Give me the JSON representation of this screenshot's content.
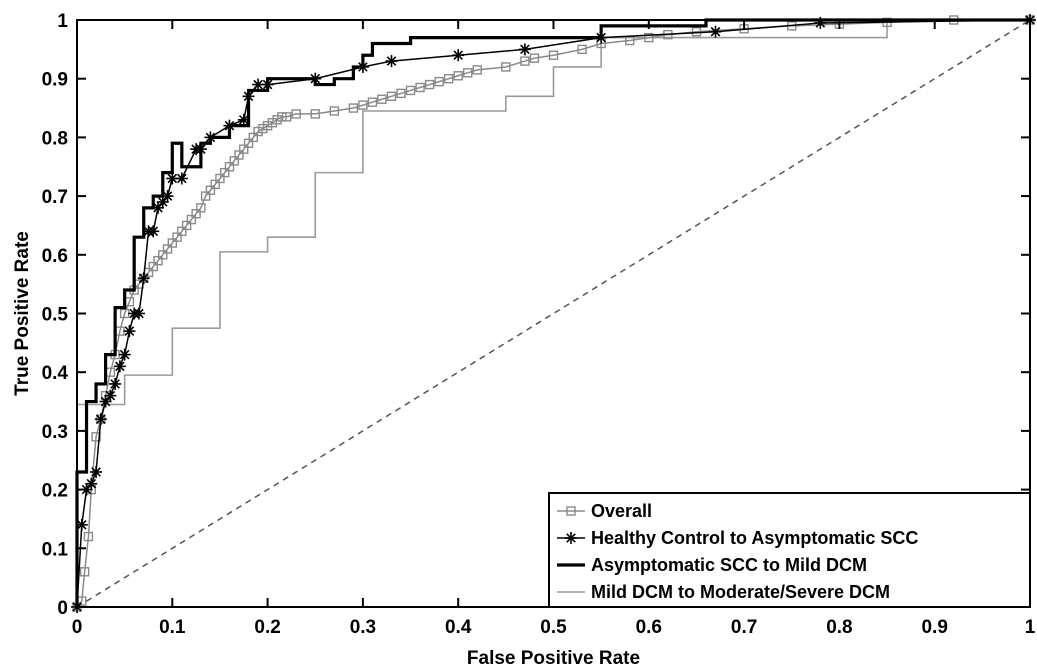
{
  "chart_data": {
    "type": "line",
    "title": "",
    "xlabel": "False Positive Rate",
    "ylabel": "True Positive Rate",
    "xlim": [
      0,
      1
    ],
    "ylim": [
      0,
      1
    ],
    "xticks": [
      0,
      0.1,
      0.2,
      0.3,
      0.4,
      0.5,
      0.6,
      0.7,
      0.8,
      0.9,
      1
    ],
    "yticks": [
      0,
      0.1,
      0.2,
      0.3,
      0.4,
      0.5,
      0.6,
      0.7,
      0.8,
      0.9,
      1
    ],
    "xtick_labels": [
      "0",
      "0.1",
      "0.2",
      "0.3",
      "0.4",
      "0.5",
      "0.6",
      "0.7",
      "0.8",
      "0.9",
      "1"
    ],
    "ytick_labels": [
      "0",
      "0.1",
      "0.2",
      "0.3",
      "0.4",
      "0.5",
      "0.6",
      "0.7",
      "0.8",
      "0.9",
      "1"
    ],
    "grid": false,
    "legend_position": "bottom-right",
    "reference_line": {
      "x": [
        0,
        1
      ],
      "y": [
        0,
        1
      ],
      "style": "dashed",
      "color": "#555555"
    },
    "series": [
      {
        "name": "Overall",
        "color": "#8a8a8a",
        "marker": "square",
        "x": [
          0.0,
          0.005,
          0.008,
          0.012,
          0.015,
          0.02,
          0.025,
          0.03,
          0.035,
          0.04,
          0.045,
          0.05,
          0.055,
          0.06,
          0.065,
          0.07,
          0.075,
          0.08,
          0.085,
          0.09,
          0.095,
          0.1,
          0.105,
          0.11,
          0.115,
          0.12,
          0.125,
          0.13,
          0.135,
          0.14,
          0.145,
          0.15,
          0.155,
          0.16,
          0.165,
          0.17,
          0.175,
          0.18,
          0.185,
          0.19,
          0.195,
          0.2,
          0.205,
          0.21,
          0.215,
          0.22,
          0.23,
          0.25,
          0.27,
          0.29,
          0.3,
          0.31,
          0.32,
          0.33,
          0.34,
          0.35,
          0.36,
          0.37,
          0.38,
          0.39,
          0.4,
          0.41,
          0.42,
          0.45,
          0.47,
          0.48,
          0.5,
          0.53,
          0.55,
          0.58,
          0.6,
          0.62,
          0.65,
          0.7,
          0.75,
          0.8,
          0.85,
          0.92,
          1.0
        ],
        "y": [
          0.0,
          0.01,
          0.06,
          0.12,
          0.2,
          0.29,
          0.32,
          0.36,
          0.4,
          0.43,
          0.47,
          0.5,
          0.52,
          0.54,
          0.55,
          0.56,
          0.57,
          0.58,
          0.59,
          0.6,
          0.61,
          0.62,
          0.63,
          0.64,
          0.65,
          0.66,
          0.67,
          0.68,
          0.7,
          0.71,
          0.72,
          0.73,
          0.74,
          0.75,
          0.76,
          0.77,
          0.78,
          0.79,
          0.8,
          0.81,
          0.815,
          0.82,
          0.825,
          0.83,
          0.835,
          0.835,
          0.84,
          0.84,
          0.845,
          0.85,
          0.855,
          0.86,
          0.865,
          0.87,
          0.875,
          0.88,
          0.885,
          0.89,
          0.895,
          0.9,
          0.905,
          0.91,
          0.915,
          0.92,
          0.93,
          0.935,
          0.94,
          0.95,
          0.96,
          0.965,
          0.97,
          0.975,
          0.98,
          0.985,
          0.99,
          0.993,
          0.996,
          1.0,
          1.0
        ]
      },
      {
        "name": "Healthy Control to Asymptomatic SCC",
        "color": "#000000",
        "marker": "asterisk",
        "x": [
          0.0,
          0.005,
          0.01,
          0.015,
          0.02,
          0.025,
          0.03,
          0.035,
          0.04,
          0.045,
          0.05,
          0.055,
          0.06,
          0.065,
          0.07,
          0.075,
          0.08,
          0.085,
          0.09,
          0.095,
          0.1,
          0.11,
          0.125,
          0.13,
          0.14,
          0.16,
          0.175,
          0.18,
          0.19,
          0.2,
          0.25,
          0.3,
          0.33,
          0.4,
          0.47,
          0.55,
          0.67,
          0.78,
          1.0
        ],
        "y": [
          0.0,
          0.14,
          0.2,
          0.21,
          0.23,
          0.32,
          0.35,
          0.36,
          0.38,
          0.41,
          0.43,
          0.47,
          0.5,
          0.5,
          0.56,
          0.64,
          0.64,
          0.68,
          0.69,
          0.7,
          0.73,
          0.73,
          0.78,
          0.78,
          0.8,
          0.82,
          0.83,
          0.87,
          0.89,
          0.89,
          0.9,
          0.92,
          0.93,
          0.94,
          0.95,
          0.97,
          0.98,
          0.995,
          1.0
        ]
      },
      {
        "name": "Asymptomatic SCC to Mild DCM",
        "color": "#000000",
        "marker": "none",
        "x": [
          0.0,
          0.0,
          0.01,
          0.01,
          0.02,
          0.02,
          0.03,
          0.03,
          0.04,
          0.04,
          0.05,
          0.05,
          0.06,
          0.06,
          0.07,
          0.07,
          0.08,
          0.08,
          0.09,
          0.09,
          0.1,
          0.1,
          0.11,
          0.11,
          0.13,
          0.13,
          0.14,
          0.14,
          0.16,
          0.16,
          0.18,
          0.18,
          0.2,
          0.2,
          0.25,
          0.25,
          0.27,
          0.27,
          0.29,
          0.29,
          0.3,
          0.3,
          0.31,
          0.31,
          0.35,
          0.35,
          0.55,
          0.55,
          0.66,
          0.66,
          1.0
        ],
        "y": [
          0.0,
          0.23,
          0.23,
          0.35,
          0.35,
          0.38,
          0.38,
          0.43,
          0.43,
          0.51,
          0.51,
          0.54,
          0.54,
          0.63,
          0.63,
          0.68,
          0.68,
          0.7,
          0.7,
          0.74,
          0.74,
          0.79,
          0.79,
          0.75,
          0.75,
          0.79,
          0.79,
          0.8,
          0.8,
          0.82,
          0.82,
          0.88,
          0.88,
          0.9,
          0.9,
          0.89,
          0.89,
          0.9,
          0.9,
          0.92,
          0.92,
          0.94,
          0.94,
          0.96,
          0.96,
          0.97,
          0.97,
          0.99,
          0.99,
          1.0,
          1.0
        ]
      },
      {
        "name": "Mild DCM to Moderate/Severe DCM",
        "color": "#9a9a9a",
        "marker": "none",
        "x": [
          0.0,
          0.0,
          0.05,
          0.05,
          0.1,
          0.1,
          0.15,
          0.15,
          0.2,
          0.2,
          0.25,
          0.25,
          0.3,
          0.3,
          0.45,
          0.45,
          0.5,
          0.5,
          0.55,
          0.55,
          0.85,
          0.85,
          1.0
        ],
        "y": [
          0.0,
          0.345,
          0.345,
          0.395,
          0.395,
          0.475,
          0.475,
          0.605,
          0.605,
          0.63,
          0.63,
          0.74,
          0.74,
          0.845,
          0.845,
          0.87,
          0.87,
          0.92,
          0.92,
          0.97,
          0.97,
          1.0,
          1.0
        ]
      }
    ]
  }
}
